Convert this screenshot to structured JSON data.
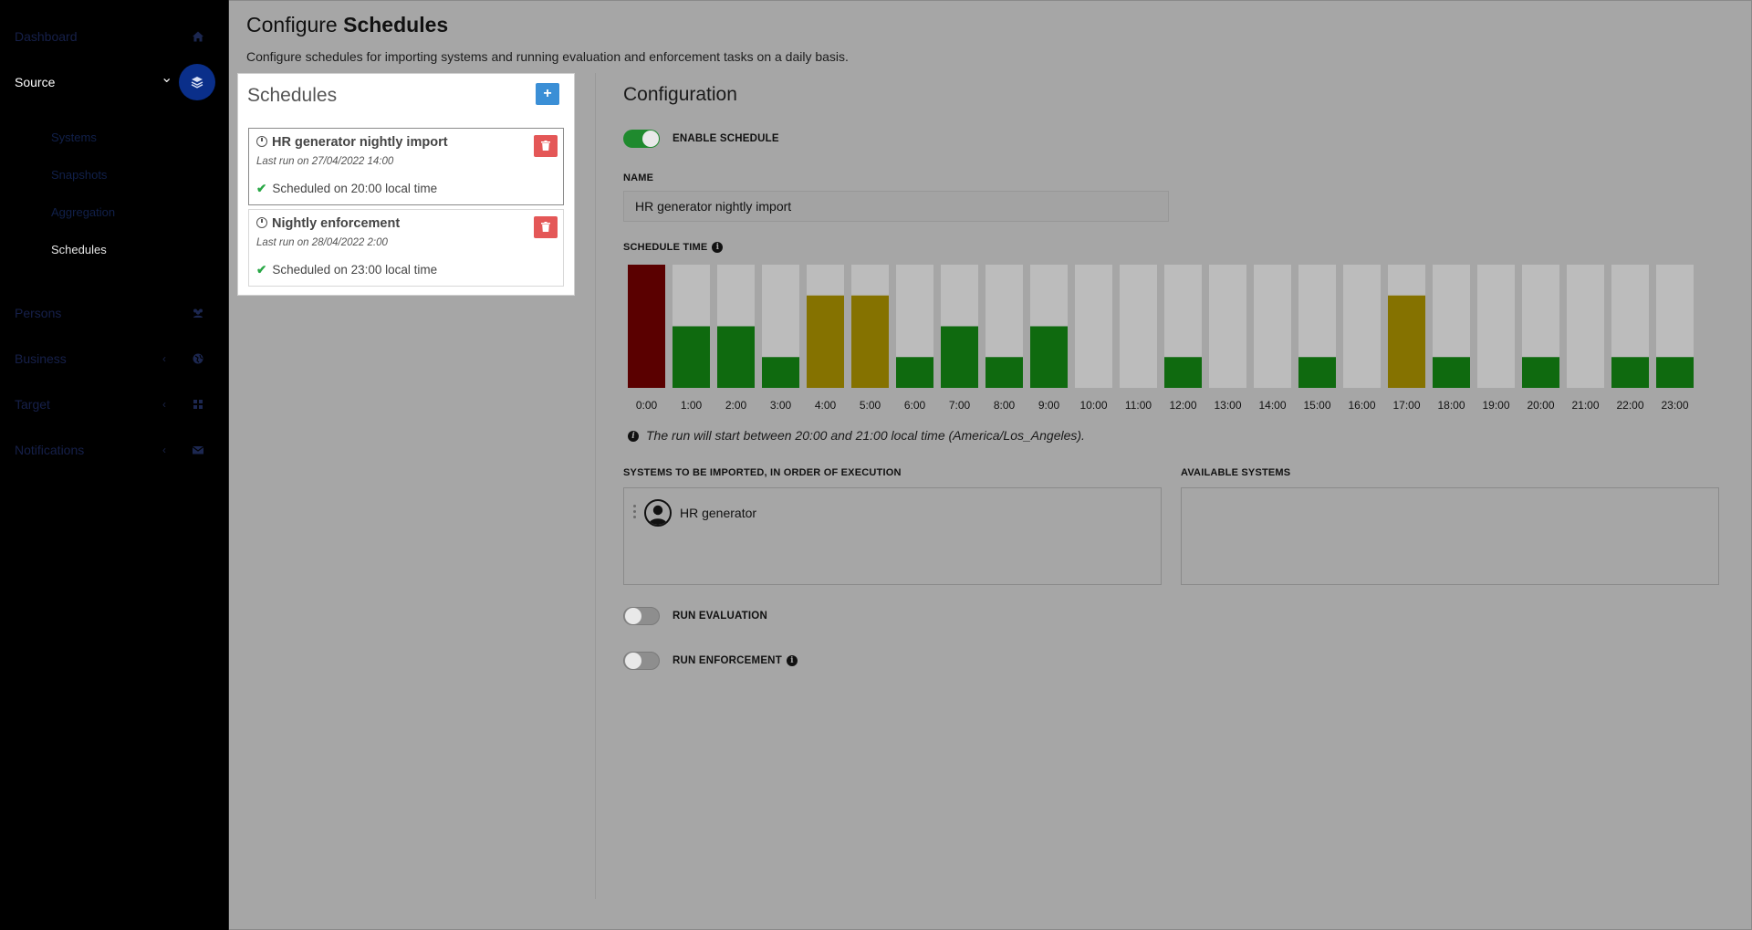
{
  "sidebar": {
    "items": [
      {
        "label": "Dashboard",
        "icon": "home-icon",
        "chevron": ""
      },
      {
        "label": "Source",
        "icon": "layers-icon",
        "chevron": "⌄"
      },
      {
        "label": "Persons",
        "icon": "users-icon",
        "chevron": ""
      },
      {
        "label": "Business",
        "icon": "globe-icon",
        "chevron": "‹"
      },
      {
        "label": "Target",
        "icon": "grid-icon",
        "chevron": "‹"
      },
      {
        "label": "Notifications",
        "icon": "envelope-icon",
        "chevron": "‹"
      }
    ],
    "source_sub": [
      {
        "label": "Systems"
      },
      {
        "label": "Snapshots"
      },
      {
        "label": "Aggregation"
      },
      {
        "label": "Schedules"
      }
    ]
  },
  "header": {
    "title_prefix": "Configure",
    "title_bold": "Schedules",
    "subtitle": "Configure schedules for importing systems and running evaluation and enforcement tasks on a daily basis."
  },
  "schedules": {
    "heading": "Schedules",
    "add_label": "+",
    "items": [
      {
        "title": "HR generator nightly import",
        "last_run": "Last run on 27/04/2022 14:00",
        "status": "Scheduled on 20:00 local time"
      },
      {
        "title": "Nightly enforcement",
        "last_run": "Last run on 28/04/2022 2:00",
        "status": "Scheduled on 23:00 local time"
      }
    ]
  },
  "config": {
    "heading": "Configuration",
    "enable_label": "ENABLE SCHEDULE",
    "enable_on": true,
    "name_label": "NAME",
    "name_value": "HR generator nightly import",
    "schedule_time_label": "SCHEDULE TIME",
    "run_note": "The run will start between 20:00 and 21:00 local time (America/Los_Angeles).",
    "systems_label": "SYSTEMS TO BE IMPORTED, IN ORDER OF EXECUTION",
    "available_label": "AVAILABLE SYSTEMS",
    "systems": [
      {
        "name": "HR generator",
        "icon": "user-avatar-icon"
      }
    ],
    "run_evaluation_label": "RUN EVALUATION",
    "run_evaluation_on": false,
    "run_enforcement_label": "RUN ENFORCEMENT",
    "run_enforcement_on": false
  },
  "colors": {
    "low": "#0f6a0f",
    "medium": "#857200",
    "high": "#5a0000",
    "empty": "#bcbcbc",
    "accent": "#3b8fd6",
    "danger": "#e45757"
  },
  "chart_data": {
    "type": "bar",
    "categories": [
      "0:00",
      "1:00",
      "2:00",
      "3:00",
      "4:00",
      "5:00",
      "6:00",
      "7:00",
      "8:00",
      "9:00",
      "10:00",
      "11:00",
      "12:00",
      "13:00",
      "14:00",
      "15:00",
      "16:00",
      "17:00",
      "18:00",
      "19:00",
      "20:00",
      "21:00",
      "22:00",
      "23:00"
    ],
    "values": [
      4,
      2,
      2,
      1,
      3,
      3,
      1,
      2,
      1,
      2,
      0,
      0,
      1,
      0,
      0,
      1,
      0,
      3,
      1,
      0,
      1,
      0,
      1,
      1
    ],
    "ylim": [
      0,
      4
    ],
    "color_scale": {
      "1": "low",
      "2": "low",
      "3": "medium",
      "4": "high"
    }
  }
}
